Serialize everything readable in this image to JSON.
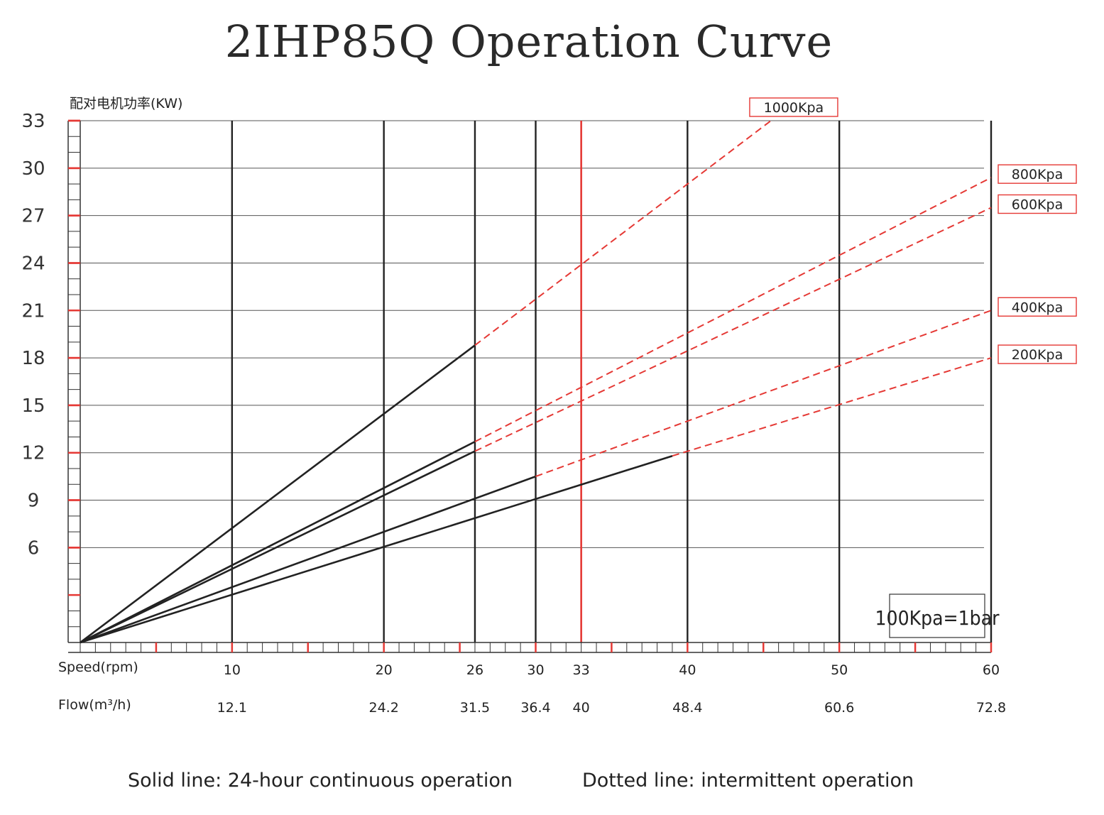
{
  "chart_data": {
    "type": "line",
    "title": "2IHP85Q Operation Curve",
    "ylabel": "配对电机功率(KW)",
    "ylim": [
      0,
      33
    ],
    "y_ticks": [
      33,
      30,
      27,
      24,
      21,
      18,
      15,
      12,
      9,
      6
    ],
    "xlim": [
      0,
      60
    ],
    "x_row_label": "Speed(rpm)",
    "flow_row_label": "Flow(m³/h)",
    "x_ticks": [
      {
        "speed": 10,
        "speed_label": "10",
        "flow_label": "12.1"
      },
      {
        "speed": 20,
        "speed_label": "20",
        "flow_label": "24.2"
      },
      {
        "speed": 26,
        "speed_label": "26",
        "flow_label": "31.5"
      },
      {
        "speed": 30,
        "speed_label": "30",
        "flow_label": "36.4"
      },
      {
        "speed": 33,
        "speed_label": "33",
        "flow_label": "40"
      },
      {
        "speed": 40,
        "speed_label": "40",
        "flow_label": "48.4"
      },
      {
        "speed": 50,
        "speed_label": "50",
        "flow_label": "60.6"
      },
      {
        "speed": 60,
        "speed_label": "60",
        "flow_label": "72.8"
      }
    ],
    "highlight_speed": 33,
    "series": [
      {
        "name": "200Kpa",
        "solid": [
          [
            0,
            0
          ],
          [
            39,
            11.8
          ]
        ],
        "dashed": [
          [
            39,
            11.8
          ],
          [
            60,
            18
          ]
        ]
      },
      {
        "name": "400Kpa",
        "solid": [
          [
            0,
            0
          ],
          [
            30,
            10.5
          ]
        ],
        "dashed": [
          [
            30,
            10.5
          ],
          [
            60,
            21
          ]
        ]
      },
      {
        "name": "600Kpa",
        "solid": [
          [
            0,
            0
          ],
          [
            26,
            12.1
          ]
        ],
        "dashed": [
          [
            26,
            12.1
          ],
          [
            60,
            27.5
          ]
        ]
      },
      {
        "name": "800Kpa",
        "solid": [
          [
            0,
            0
          ],
          [
            26,
            12.7
          ]
        ],
        "dashed": [
          [
            26,
            12.7
          ],
          [
            60,
            29.4
          ]
        ]
      },
      {
        "name": "1000Kpa",
        "solid": [
          [
            0,
            0
          ],
          [
            26,
            18.8
          ]
        ],
        "dashed": [
          [
            26,
            18.8
          ],
          [
            45.5,
            33
          ]
        ]
      }
    ],
    "note": "100Kpa=1bar",
    "colors": {
      "grid": "#555555",
      "solid": "#222222",
      "dashed": "#e53935",
      "accent": "#e53935"
    }
  },
  "legend": {
    "solid": "Solid line: 24-hour continuous operation",
    "dotted": "Dotted line: intermittent operation"
  }
}
